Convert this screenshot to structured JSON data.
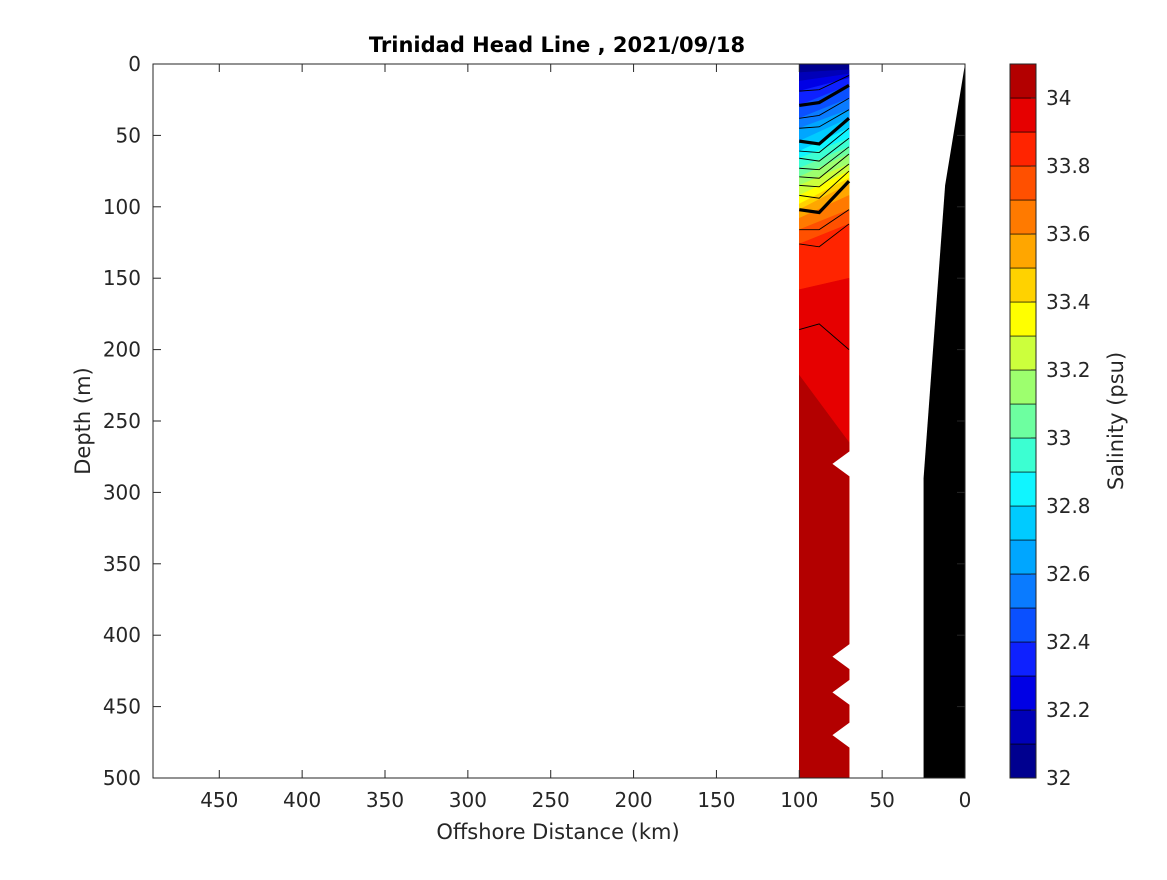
{
  "chart_data": {
    "type": "heatmap",
    "subtype": "filled-contour-section",
    "title": "Trinidad Head Line , 2021/09/18",
    "xlabel": "Offshore Distance (km)",
    "ylabel": "Depth (m)",
    "xlim": [
      490,
      0
    ],
    "ylim": [
      500,
      0
    ],
    "x_reversed": true,
    "y_reversed": true,
    "xticks": [
      450,
      400,
      350,
      300,
      250,
      200,
      150,
      100,
      50,
      0
    ],
    "yticks": [
      0,
      50,
      100,
      150,
      200,
      250,
      300,
      350,
      400,
      450,
      500
    ],
    "colorbar": {
      "label": "Salinity (psu)",
      "limits": [
        32,
        34.1
      ],
      "ticks": [
        32,
        32.2,
        32.4,
        32.6,
        32.8,
        33,
        33.2,
        33.4,
        33.6,
        33.8,
        34
      ],
      "levels": [
        {
          "from": 32.0,
          "to": 32.1,
          "color": "#00008f"
        },
        {
          "from": 32.1,
          "to": 32.2,
          "color": "#0000b8"
        },
        {
          "from": 32.2,
          "to": 32.3,
          "color": "#0000e5"
        },
        {
          "from": 32.3,
          "to": 32.4,
          "color": "#0e21ff"
        },
        {
          "from": 32.4,
          "to": 32.5,
          "color": "#0a50ff"
        },
        {
          "from": 32.5,
          "to": 32.6,
          "color": "#0a7bff"
        },
        {
          "from": 32.6,
          "to": 32.7,
          "color": "#00a6ff"
        },
        {
          "from": 32.7,
          "to": 32.8,
          "color": "#00cbff"
        },
        {
          "from": 32.8,
          "to": 32.9,
          "color": "#10f5ff"
        },
        {
          "from": 32.9,
          "to": 33.0,
          "color": "#3cffd2"
        },
        {
          "from": 33.0,
          "to": 33.1,
          "color": "#6dffa0"
        },
        {
          "from": 33.1,
          "to": 33.2,
          "color": "#9dff6e"
        },
        {
          "from": 33.2,
          "to": 33.3,
          "color": "#ccff3c"
        },
        {
          "from": 33.3,
          "to": 33.4,
          "color": "#ffff00"
        },
        {
          "from": 33.4,
          "to": 33.5,
          "color": "#ffd200"
        },
        {
          "from": 33.5,
          "to": 33.6,
          "color": "#ffa600"
        },
        {
          "from": 33.6,
          "to": 33.7,
          "color": "#ff7a00"
        },
        {
          "from": 33.7,
          "to": 33.8,
          "color": "#ff5000"
        },
        {
          "from": 33.8,
          "to": 33.9,
          "color": "#ff2400"
        },
        {
          "from": 33.9,
          "to": 34.0,
          "color": "#e60000"
        },
        {
          "from": 34.0,
          "to": 34.1,
          "color": "#b30000"
        }
      ]
    },
    "section": {
      "x_offshore": 100,
      "x_inshore": 70,
      "bands": [
        {
          "top_off": 0,
          "top_in": 0,
          "color": "#00008f"
        },
        {
          "top_off": 6,
          "top_in": 4,
          "color": "#0000b8"
        },
        {
          "top_off": 12,
          "top_in": 7,
          "color": "#0000e5"
        },
        {
          "top_off": 19,
          "top_in": 10,
          "color": "#0e21ff"
        },
        {
          "top_off": 29,
          "top_in": 15,
          "color": "#0a50ff"
        },
        {
          "top_off": 38,
          "top_in": 24,
          "color": "#0a7bff"
        },
        {
          "top_off": 45,
          "top_in": 32,
          "color": "#00a6ff"
        },
        {
          "top_off": 54,
          "top_in": 38,
          "color": "#00cbff"
        },
        {
          "top_off": 61,
          "top_in": 45,
          "color": "#10f5ff"
        },
        {
          "top_off": 66,
          "top_in": 52,
          "color": "#3cffd2"
        },
        {
          "top_off": 73,
          "top_in": 58,
          "color": "#6dffa0"
        },
        {
          "top_off": 79,
          "top_in": 63,
          "color": "#9dff6e"
        },
        {
          "top_off": 85,
          "top_in": 70,
          "color": "#ccff3c"
        },
        {
          "top_off": 92,
          "top_in": 75,
          "color": "#ffff00"
        },
        {
          "top_off": 98,
          "top_in": 80,
          "color": "#ffd200"
        },
        {
          "top_off": 102,
          "top_in": 84,
          "color": "#ffa600"
        },
        {
          "top_off": 108,
          "top_in": 92,
          "color": "#ff7a00"
        },
        {
          "top_off": 116,
          "top_in": 102,
          "color": "#ff5000"
        },
        {
          "top_off": 126,
          "top_in": 112,
          "color": "#ff2400"
        },
        {
          "top_off": 158,
          "top_in": 150,
          "color": "#e60000"
        },
        {
          "top_off": 218,
          "top_in": 265,
          "color": "#b30000"
        }
      ],
      "bottom_depth": 500,
      "notches": [
        {
          "depth": 280,
          "x_tip": 80
        },
        {
          "depth": 415,
          "x_tip": 80
        },
        {
          "depth": 440,
          "x_tip": 80
        },
        {
          "depth": 470,
          "x_tip": 80
        }
      ],
      "contours": [
        {
          "depth_off": 19,
          "depth_mid": 18,
          "depth_in": 8,
          "bold": false
        },
        {
          "depth_off": 29,
          "depth_mid": 27,
          "depth_in": 15,
          "bold": true
        },
        {
          "depth_off": 38,
          "depth_mid": 36,
          "depth_in": 24,
          "bold": false
        },
        {
          "depth_off": 45,
          "depth_mid": 44,
          "depth_in": 32,
          "bold": false
        },
        {
          "depth_off": 54,
          "depth_mid": 56,
          "depth_in": 38,
          "bold": true
        },
        {
          "depth_off": 61,
          "depth_mid": 62,
          "depth_in": 45,
          "bold": false
        },
        {
          "depth_off": 66,
          "depth_mid": 68,
          "depth_in": 52,
          "bold": false
        },
        {
          "depth_off": 73,
          "depth_mid": 74,
          "depth_in": 58,
          "bold": false
        },
        {
          "depth_off": 79,
          "depth_mid": 80,
          "depth_in": 63,
          "bold": false
        },
        {
          "depth_off": 85,
          "depth_mid": 86,
          "depth_in": 70,
          "bold": false
        },
        {
          "depth_off": 92,
          "depth_mid": 94,
          "depth_in": 75,
          "bold": false
        },
        {
          "depth_off": 102,
          "depth_mid": 104,
          "depth_in": 82,
          "bold": true
        },
        {
          "depth_off": 116,
          "depth_mid": 116,
          "depth_in": 102,
          "bold": false
        },
        {
          "depth_off": 126,
          "depth_mid": 128,
          "depth_in": 112,
          "bold": false
        },
        {
          "depth_off": 186,
          "depth_mid": 182,
          "depth_in": 200,
          "bold": false
        }
      ]
    },
    "bathymetry": {
      "color": "#000000",
      "outline": [
        [
          0,
          0
        ],
        [
          12,
          85
        ],
        [
          25,
          290
        ],
        [
          25,
          500
        ],
        [
          0,
          500
        ]
      ]
    }
  }
}
